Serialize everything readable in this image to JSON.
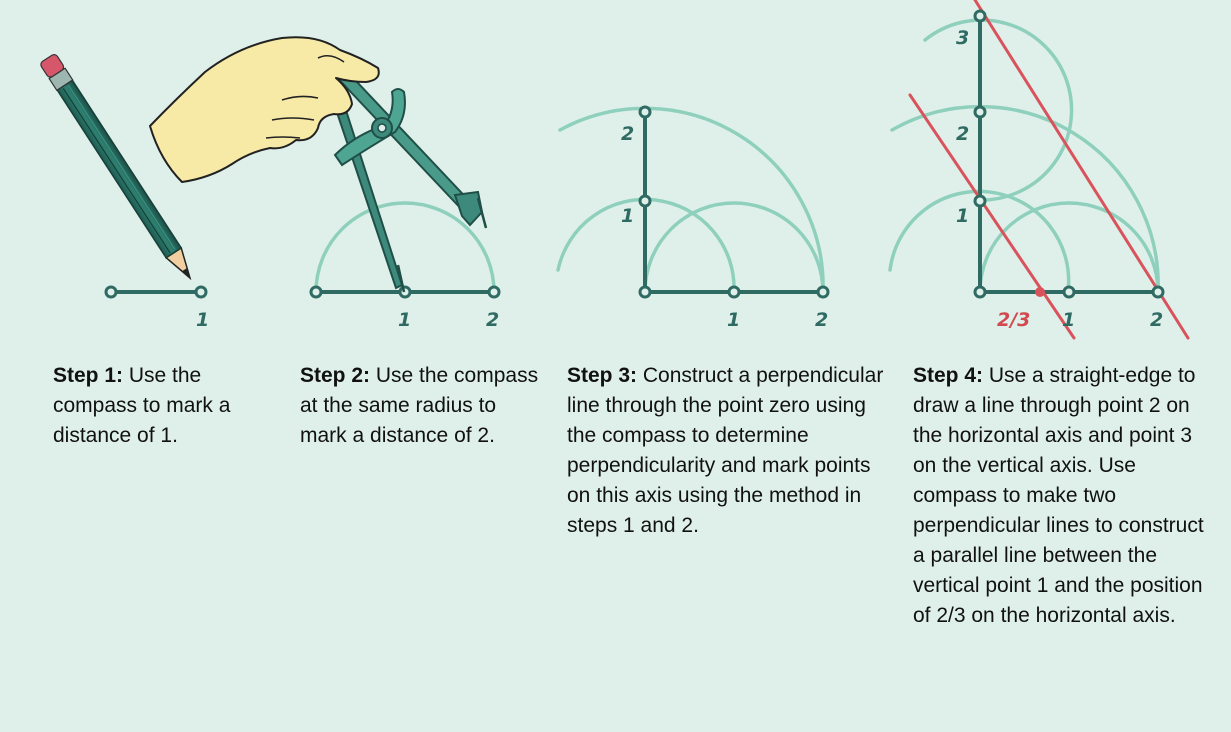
{
  "steps": [
    {
      "label": "Step 1:",
      "text": " Use the compass to mark a distance of 1.",
      "axis_labels": [
        "1"
      ]
    },
    {
      "label": "Step 2:",
      "text": " Use the compass at the same radius to mark a distance of 2.",
      "axis_labels": [
        "1",
        "2"
      ]
    },
    {
      "label": "Step 3:",
      "text": " Construct a perpendicular line through the point zero using the compass to determine perpendicularity and mark points on this axis using the method in steps 1 and 2.",
      "axis_labels": [
        "1",
        "2"
      ],
      "vertical_labels": [
        "1",
        "2"
      ]
    },
    {
      "label": "Step 4:",
      "text": " Use a straight-edge to draw a line through point 2 on the horizontal axis and point 3 on the vertical axis. Use compass to make two perpendicular lines to construct a parallel line between the vertical point 1 and the position of 2/3 on the horizontal axis.",
      "axis_labels": [
        "2/3",
        "1",
        "2"
      ],
      "vertical_labels": [
        "1",
        "2",
        "3"
      ]
    }
  ],
  "colors": {
    "background": "#dff0ea",
    "axis": "#2f6b63",
    "arc": "#8fd0bd",
    "highlight": "#d9535c"
  }
}
